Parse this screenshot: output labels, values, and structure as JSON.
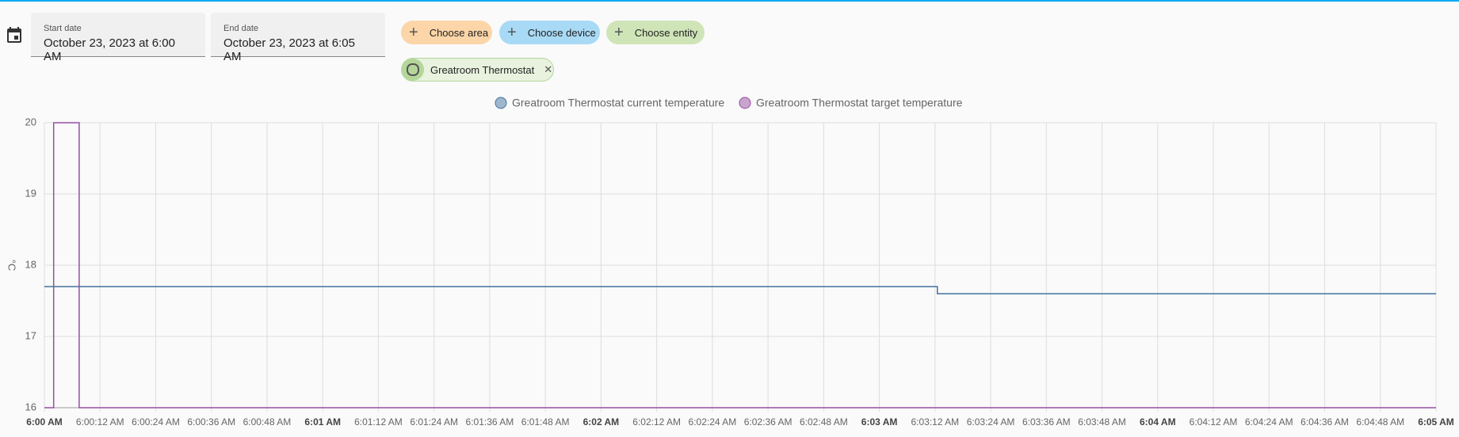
{
  "header": {
    "start_date": {
      "label": "Start date",
      "value": "October 23, 2023 at 6:00 AM"
    },
    "end_date": {
      "label": "End date",
      "value": "October 23, 2023 at 6:05 AM"
    },
    "chips": [
      "Choose area",
      "Choose device",
      "Choose entity"
    ],
    "selected_entity": "Greatroom Thermostat"
  },
  "chart_data": {
    "type": "line",
    "ylabel": "°C",
    "series": [
      {
        "name": "Greatroom Thermostat current temperature",
        "color": "#44739e",
        "x": [
          0,
          192.5,
          192.5,
          300
        ],
        "values": [
          17.7,
          17.7,
          17.6,
          17.6
        ]
      },
      {
        "name": "Greatroom Thermostat target temperature",
        "color": "#984ea3",
        "x": [
          0,
          2,
          2,
          7.5,
          7.5,
          300
        ],
        "values": [
          16,
          16,
          20,
          20,
          16,
          16
        ]
      }
    ],
    "xlim": [
      0,
      300
    ],
    "xticks": [
      {
        "value": 0,
        "label": "6:00 AM"
      },
      {
        "value": 12,
        "label": "6:00:12 AM"
      },
      {
        "value": 24,
        "label": "6:00:24 AM"
      },
      {
        "value": 36,
        "label": "6:00:36 AM"
      },
      {
        "value": 48,
        "label": "6:00:48 AM"
      },
      {
        "value": 60,
        "label": "6:01 AM"
      },
      {
        "value": 72,
        "label": "6:01:12 AM"
      },
      {
        "value": 84,
        "label": "6:01:24 AM"
      },
      {
        "value": 96,
        "label": "6:01:36 AM"
      },
      {
        "value": 108,
        "label": "6:01:48 AM"
      },
      {
        "value": 120,
        "label": "6:02 AM"
      },
      {
        "value": 132,
        "label": "6:02:12 AM"
      },
      {
        "value": 144,
        "label": "6:02:24 AM"
      },
      {
        "value": 156,
        "label": "6:02:36 AM"
      },
      {
        "value": 168,
        "label": "6:02:48 AM"
      },
      {
        "value": 180,
        "label": "6:03 AM"
      },
      {
        "value": 192,
        "label": "6:03:12 AM"
      },
      {
        "value": 204,
        "label": "6:03:24 AM"
      },
      {
        "value": 216,
        "label": "6:03:36 AM"
      },
      {
        "value": 228,
        "label": "6:03:48 AM"
      },
      {
        "value": 240,
        "label": "6:04 AM"
      },
      {
        "value": 252,
        "label": "6:04:12 AM"
      },
      {
        "value": 264,
        "label": "6:04:24 AM"
      },
      {
        "value": 276,
        "label": "6:04:36 AM"
      },
      {
        "value": 288,
        "label": "6:04:48 AM"
      },
      {
        "value": 300,
        "label": "6:05 AM"
      }
    ],
    "ylim": [
      16,
      20
    ],
    "yticks": [
      16,
      17,
      18,
      19,
      20
    ],
    "grid": true,
    "legend": "top"
  }
}
